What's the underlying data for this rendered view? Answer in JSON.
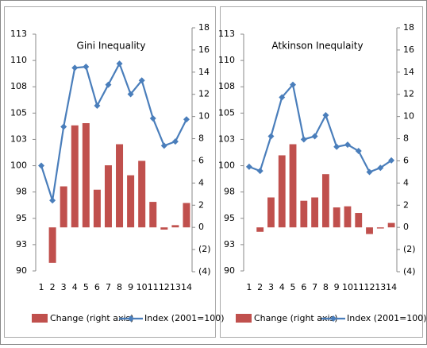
{
  "chart_data": [
    {
      "type": "combo",
      "title": "Gini Inequality",
      "categories": [
        1,
        2,
        3,
        4,
        5,
        6,
        7,
        8,
        9,
        10,
        11,
        12,
        13,
        14
      ],
      "series": [
        {
          "name": "Change (right axis)",
          "type": "bar",
          "axis": "y2",
          "color": "#c0504d",
          "values": [
            null,
            -3.2,
            3.7,
            9.2,
            9.4,
            3.4,
            5.6,
            7.5,
            4.7,
            6.0,
            2.3,
            -0.2,
            0.2,
            2.2
          ]
        },
        {
          "name": "Index (2001=100)",
          "type": "line",
          "color": "#4a7ebb",
          "values": [
            100,
            96.7,
            103.7,
            109.3,
            109.4,
            105.7,
            107.7,
            109.7,
            106.8,
            108.1,
            104.5,
            101.9,
            102.3,
            104.4
          ]
        }
      ],
      "ylim": [
        90,
        112.5
      ],
      "yticks": [
        90,
        {
          "value": 92.5,
          "label": "93"
        },
        95,
        {
          "value": 97.5,
          "label": "98"
        },
        100,
        {
          "value": 102.5,
          "label": "103"
        },
        105,
        {
          "value": 107.5,
          "label": "108"
        },
        110,
        {
          "value": 112.5,
          "label": "113"
        }
      ],
      "y2lim": [
        -4,
        18
      ],
      "y2ticks": [
        {
          "value": -4,
          "label": "(4)"
        },
        {
          "value": -2,
          "label": "(2)"
        },
        0,
        2,
        4,
        6,
        8,
        10,
        12,
        14,
        16,
        18
      ]
    },
    {
      "type": "combo",
      "title": "Atkinson Inequlaity",
      "categories": [
        1,
        2,
        3,
        4,
        5,
        6,
        7,
        8,
        9,
        10,
        11,
        12,
        13,
        14
      ],
      "series": [
        {
          "name": "Change (right axis)",
          "type": "bar",
          "axis": "y2",
          "color": "#c0504d",
          "values": [
            null,
            -0.4,
            2.7,
            6.5,
            7.5,
            2.4,
            2.7,
            4.8,
            1.8,
            1.9,
            1.3,
            -0.6,
            -0.1,
            0.4
          ]
        },
        {
          "name": "Index (2001=100)",
          "type": "line",
          "color": "#4a7ebb",
          "values": [
            99.9,
            99.5,
            102.8,
            106.5,
            107.7,
            102.5,
            102.8,
            104.8,
            101.8,
            102.0,
            101.4,
            99.4,
            99.8,
            100.5
          ]
        }
      ],
      "ylim": [
        90,
        112.5
      ],
      "yticks": [
        90,
        {
          "value": 92.5,
          "label": "93"
        },
        95,
        {
          "value": 97.5,
          "label": "98"
        },
        100,
        {
          "value": 102.5,
          "label": "103"
        },
        105,
        {
          "value": 107.5,
          "label": "108"
        },
        110,
        {
          "value": 112.5,
          "label": "113"
        }
      ],
      "y2lim": [
        -4,
        18
      ],
      "y2ticks": [
        {
          "value": -4,
          "label": "(4)"
        },
        {
          "value": -2,
          "label": "(2)"
        },
        0,
        2,
        4,
        6,
        8,
        10,
        12,
        14,
        16,
        18
      ]
    }
  ]
}
